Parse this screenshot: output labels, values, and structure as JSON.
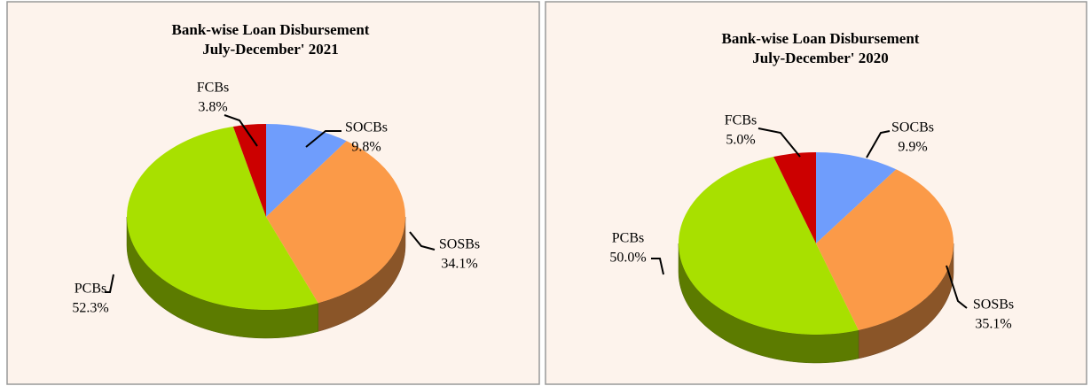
{
  "chart_data": [
    {
      "type": "pie",
      "title": "Bank-wise Loan Disbursement",
      "subtitle": "July-December' 2021",
      "categories": [
        "SOCBs",
        "SOSBs",
        "PCBs",
        "FCBs"
      ],
      "values": [
        9.8,
        34.1,
        52.3,
        3.8
      ],
      "value_labels": [
        "9.8%",
        "34.1%",
        "52.3%",
        "3.8%"
      ],
      "colors": [
        "#6f9dfc",
        "#fb9a48",
        "#a8e000",
        "#cc0000"
      ]
    },
    {
      "type": "pie",
      "title": "Bank-wise Loan Disbursement",
      "subtitle": "July-December' 2020",
      "categories": [
        "SOCBs",
        "SOSBs",
        "PCBs",
        "FCBs"
      ],
      "values": [
        9.9,
        35.1,
        50.0,
        5.0
      ],
      "value_labels": [
        "9.9%",
        "35.1%",
        "50.0%",
        "5.0%"
      ],
      "colors": [
        "#6f9dfc",
        "#fb9a48",
        "#a8e000",
        "#cc0000"
      ]
    }
  ]
}
